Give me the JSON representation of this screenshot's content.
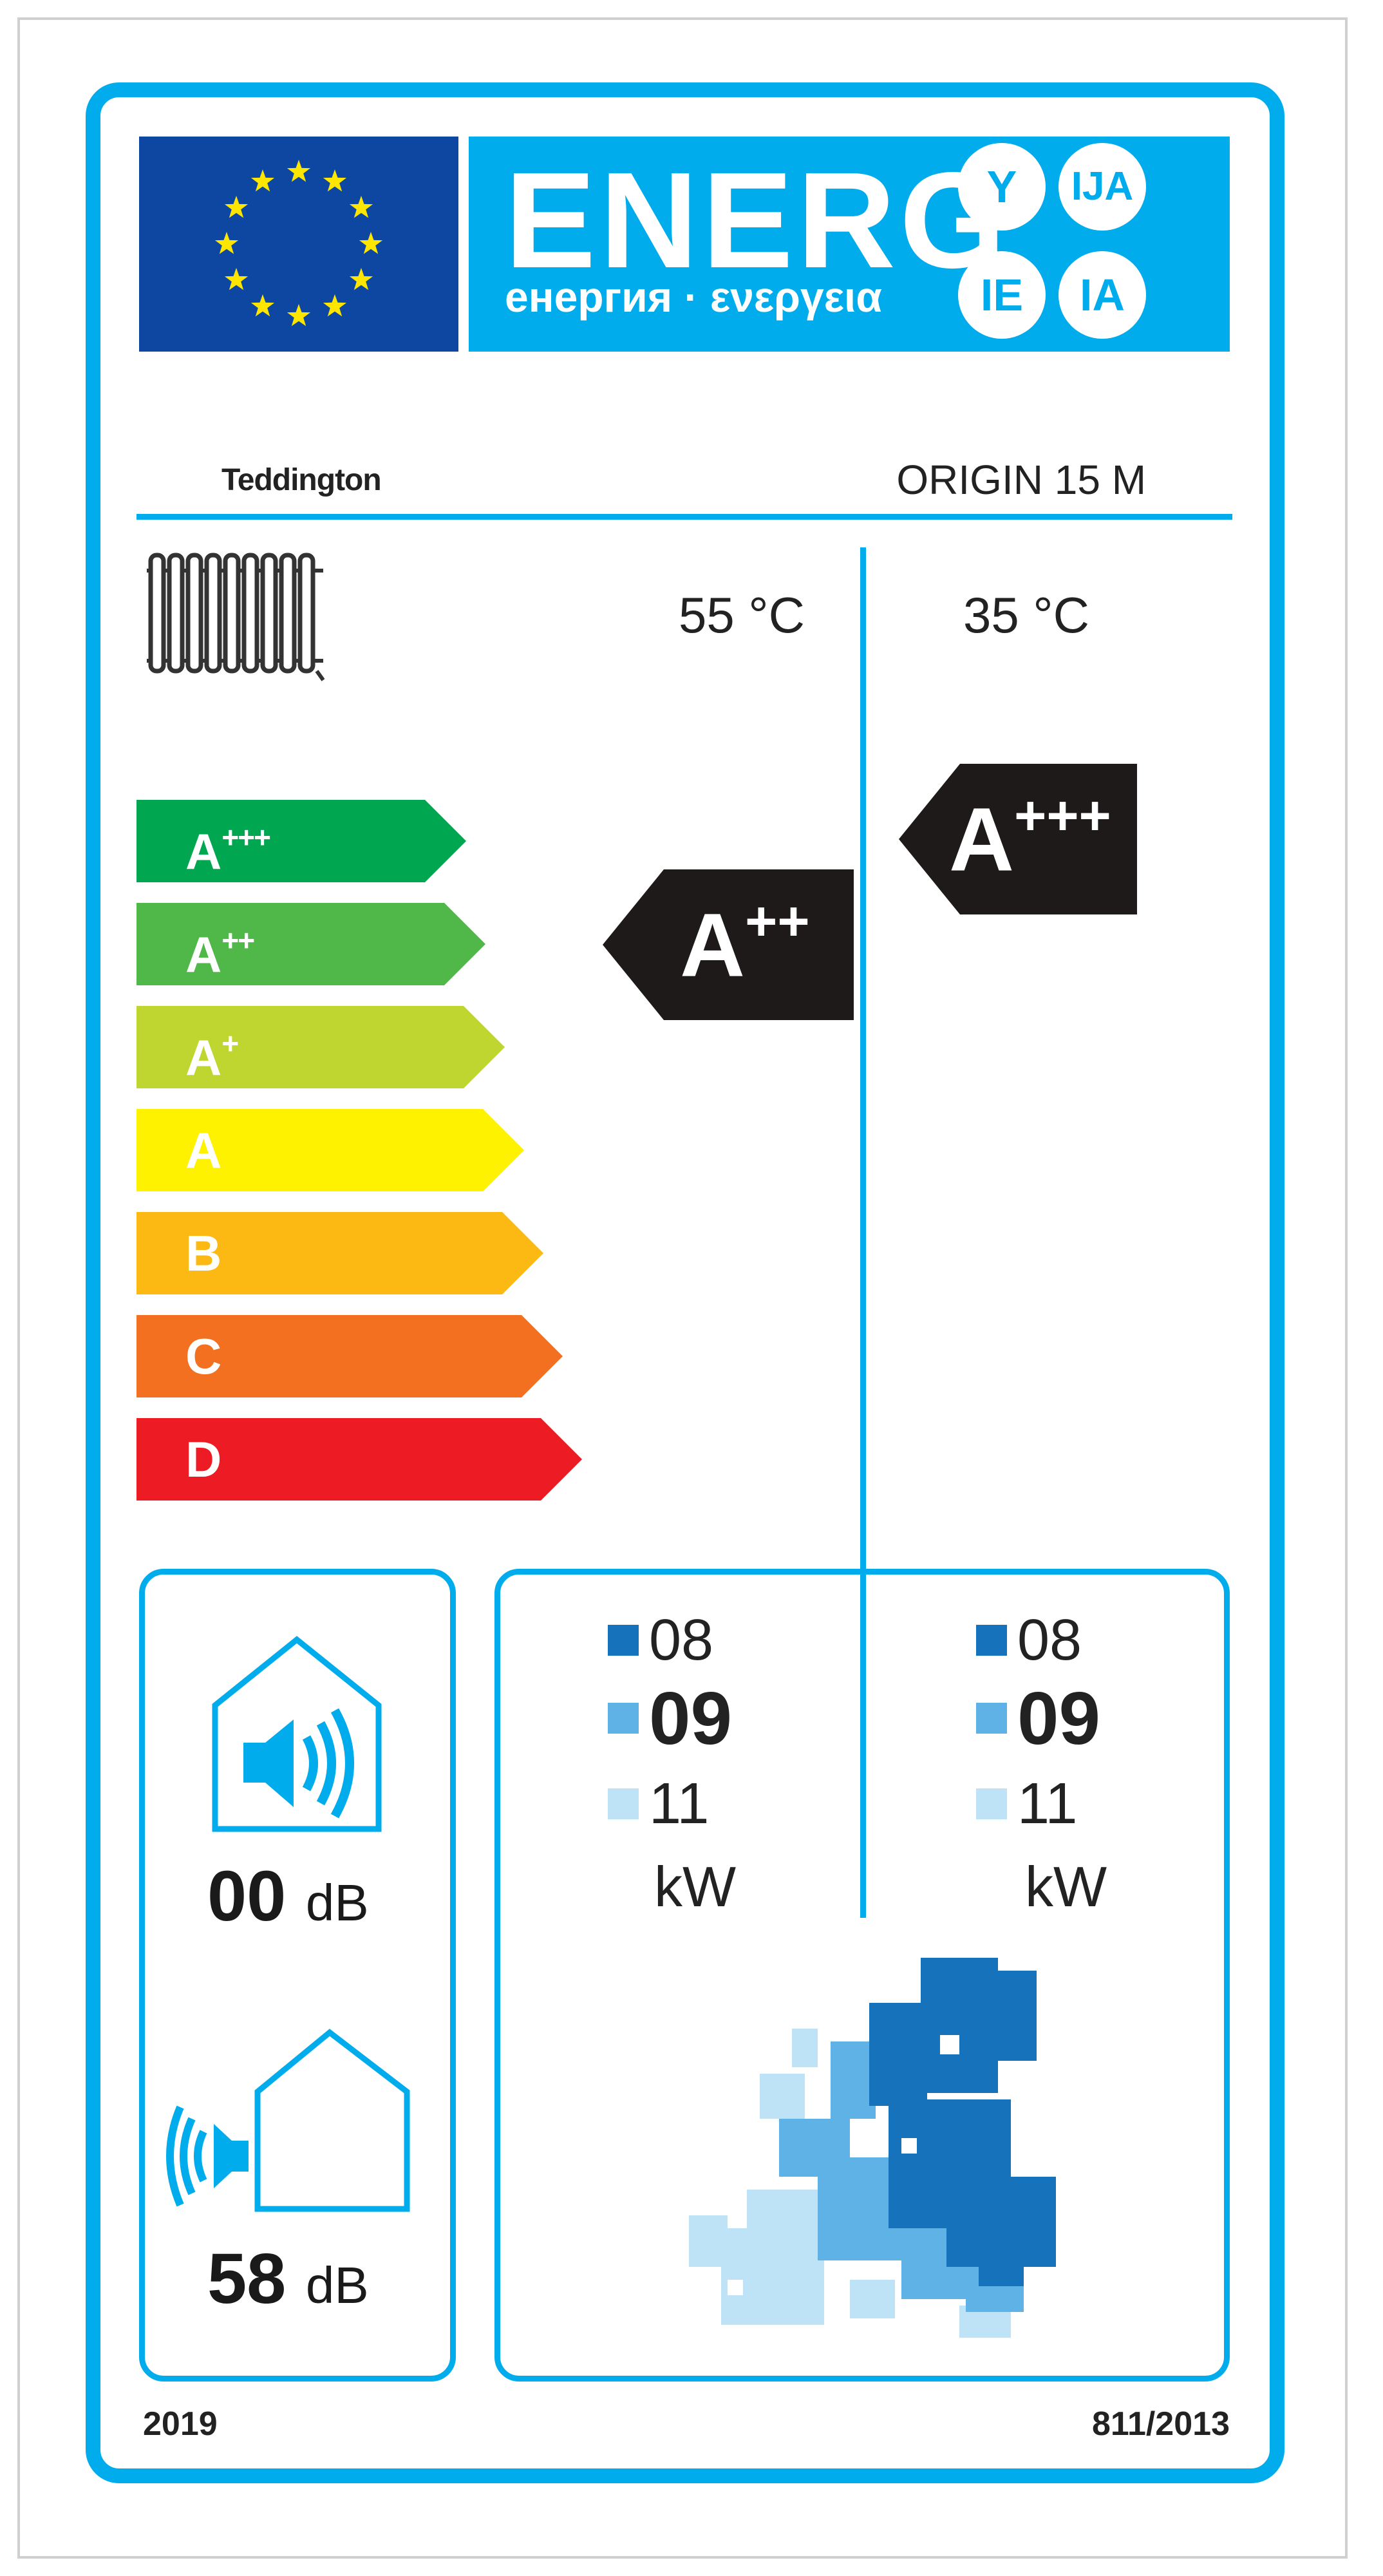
{
  "header": {
    "energy_word": "ENERG",
    "energy_subtitle": "енергия · ενεργεια",
    "suffixes": [
      "Y",
      "IJA",
      "IE",
      "IA"
    ]
  },
  "supplier": {
    "logo_text": "Teddington",
    "model": "ORIGIN 15 M"
  },
  "temperatures": {
    "medium": "55 °C",
    "low": "35 °C"
  },
  "scale": [
    {
      "base": "A",
      "plus": "+++",
      "color": "#00a650"
    },
    {
      "base": "A",
      "plus": "++",
      "color": "#50b848"
    },
    {
      "base": "A",
      "plus": "+",
      "color": "#bed62f"
    },
    {
      "base": "A",
      "plus": "",
      "color": "#fff200"
    },
    {
      "base": "B",
      "plus": "",
      "color": "#fcb813"
    },
    {
      "base": "C",
      "plus": "",
      "color": "#f37021"
    },
    {
      "base": "D",
      "plus": "",
      "color": "#ed1c24"
    }
  ],
  "ratings": {
    "medium_temp": {
      "base": "A",
      "plus": "++"
    },
    "low_temp": {
      "base": "A",
      "plus": "+++"
    }
  },
  "noise": {
    "indoor_value": "00",
    "indoor_unit": "dB",
    "outdoor_value": "58",
    "outdoor_unit": "dB"
  },
  "heat_output": {
    "medium_temp": {
      "cold": "08",
      "average": "09",
      "warm": "11"
    },
    "low_temp": {
      "cold": "08",
      "average": "09",
      "warm": "11"
    },
    "unit": "kW",
    "zone_colors": {
      "cold": "#1672ba",
      "average": "#5fb2e6",
      "warm": "#bfe3f6"
    }
  },
  "footer": {
    "year": "2019",
    "regulation": "811/2013"
  }
}
